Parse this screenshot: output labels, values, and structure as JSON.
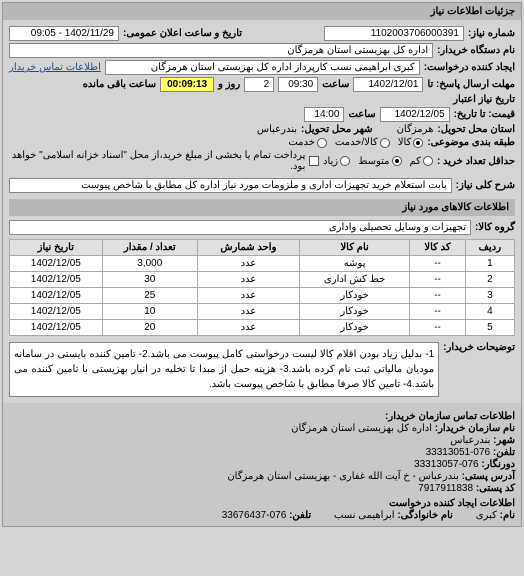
{
  "panel_title": "جزئیات اطلاعات نیاز",
  "request": {
    "number_label": "شماره نیاز:",
    "number": "1102003706000391",
    "announce_label": "تاریخ و ساعت اعلان عمومی:",
    "announce_value": "1402/11/29 - 09:05",
    "buyer_label": "نام دستگاه خریدار:",
    "buyer": "اداره کل بهزیستی استان هرمزگان",
    "requester_label": "ایجاد کننده درخواست:",
    "requester": "کبری  ابراهیمی نسب کارپرداز اداره کل بهزیستی استان هرمزگان",
    "contact_link": "اطلاعات تماس خریدار",
    "deadline_from_label": "مهلت ارسال پاسخ: تا",
    "deadline_from_date": "1402/12/01",
    "time_label": "ساعت",
    "deadline_from_time": "09:30",
    "days_label": "روز و",
    "days": "2",
    "remain_label": "ساعت باقی مانده",
    "countdown": "00:09:13",
    "validity_label": "تاریخ نیاز اعتبار",
    "price_label": "قیمت: تا تاریخ:",
    "price_date": "1402/12/05",
    "price_time": "14:00",
    "province_label": "استان محل تحویل:",
    "province": "هرمزگان",
    "city_label": "شهر محل تحویل:",
    "city": "بندرعباس",
    "category_label": "طبقه بندی موضوعی:",
    "cat_goods": "کالا",
    "cat_service": "کالا/خدمت",
    "cat_serviceonly": "خدمت",
    "criticality_label": "حداقل تعداد خرید :",
    "crit_low": "کم",
    "crit_mid": "متوسط",
    "crit_high": "زیاد",
    "payment_note": "پرداخت تمام یا بخشی از مبلغ خرید،از محل \"اسناد خزانه اسلامی\" خواهد بود.",
    "subject_label": "شرح کلی نیاز:",
    "subject": "بابت استعلام خرید تجهیزات اداری و ملزومات مورد نیاز اداره کل مطابق با شاخص پیوست"
  },
  "goods": {
    "section_title": "اطلاعات کالاهای مورد نیاز",
    "group_label": "گروه کالا:",
    "group_value": "تجهیزات و وسایل تحصیلی واداری",
    "columns": [
      "ردیف",
      "کد کالا",
      "نام کالا",
      "واحد شمارش",
      "تعداد / مقدار",
      "تاریخ نیاز"
    ],
    "rows": [
      [
        "1",
        "--",
        "پوشه",
        "عدد",
        "3,000",
        "1402/12/05"
      ],
      [
        "2",
        "--",
        "خط کش اداری",
        "عدد",
        "30",
        "1402/12/05"
      ],
      [
        "3",
        "--",
        "خودکار",
        "عدد",
        "25",
        "1402/12/05"
      ],
      [
        "4",
        "--",
        "خودکار",
        "عدد",
        "10",
        "1402/12/05"
      ],
      [
        "5",
        "--",
        "خودکار",
        "عدد",
        "20",
        "1402/12/05"
      ]
    ]
  },
  "description": {
    "label": "توضیحات خریدار:",
    "text": "1- بدلیل زیاد بودن اقلام کالا لیست درخواستی کامل پیوست می باشد.2- تامین کننده بایستی در سامانه مودیان مالیاتی ثبت نام کرده باشد.3- هزینه حمل از مبدا تا تخلیه در انبار بهزیستی با تامین کننده می باشد.4- تامین کالا صرفا مطابق با شاخص پیوست باشد."
  },
  "contact": {
    "section_title": "اطلاعات تماس سازمان خریدار:",
    "org_label": "نام سازمان خریدار:",
    "org": "اداره کل بهزیستی استان هرمزگان",
    "city_label": "شهر:",
    "city": "بندرعباس",
    "phone_label": "تلفن:",
    "phone": "076-33313051",
    "fax_label": "دورنگار:",
    "fax": "076-33313057",
    "postal_label": "آدرس پستی:",
    "postal": "بندرعباس - خ آیت الله غفاری - بهزیستی استان هرمزگان",
    "zip_label": "کد پستی:",
    "zip": "7917911838",
    "creator_section": "اطلاعات ایجاد کننده درخواست",
    "name_label": "نام:",
    "name": "کبری",
    "lastname_label": "نام خانوادگی:",
    "lastname": "ابراهیمی نسب",
    "creator_phone_label": "تلفن:",
    "creator_phone": "076-33676437"
  }
}
